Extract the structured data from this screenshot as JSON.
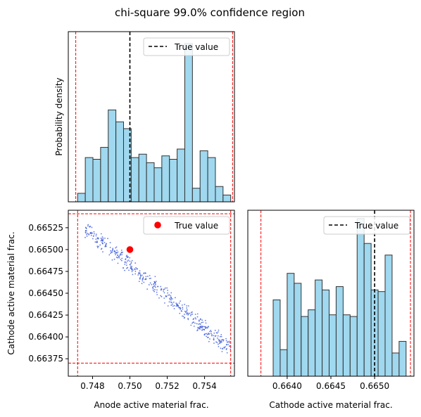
{
  "suptitle": "chi-square 99.0% confidence region",
  "colors": {
    "hist_fill": "#87ceeb",
    "hist_edge": "#333333",
    "scatter_point": "#2446d6",
    "true_point": "#ff0000",
    "bound_line": "#ff0000",
    "true_line": "#000000"
  },
  "chart_data": [
    {
      "panel": "top-left",
      "type": "bar",
      "subtype": "histogram",
      "title": "",
      "xlabel": "",
      "ylabel": "Probability density",
      "xlim": [
        0.7467,
        0.7556
      ],
      "ylim": [
        0,
        1.0
      ],
      "yticks_shown": false,
      "xticks_shown": false,
      "bin_edges": [
        0.7472,
        0.74761,
        0.74802,
        0.74843,
        0.74884,
        0.74925,
        0.74966,
        0.75007,
        0.75048,
        0.75089,
        0.7513,
        0.75171,
        0.75212,
        0.75253,
        0.75294,
        0.75335,
        0.75376,
        0.75417,
        0.75458,
        0.75499,
        0.7554
      ],
      "values": [
        0.05,
        0.26,
        0.25,
        0.32,
        0.54,
        0.47,
        0.43,
        0.26,
        0.28,
        0.23,
        0.2,
        0.27,
        0.25,
        0.31,
        0.93,
        0.08,
        0.3,
        0.26,
        0.09,
        0.04
      ],
      "true_value": 0.75,
      "bounds": [
        0.7471,
        0.7555
      ],
      "legend": {
        "entries": [
          "True value"
        ],
        "placement": "upper right"
      }
    },
    {
      "panel": "bottom-left",
      "type": "scatter",
      "title": "",
      "xlabel": "Anode active material frac.",
      "ylabel": "Cathode active material frac.",
      "xlim": [
        0.7467,
        0.7556
      ],
      "ylim": [
        0.66355,
        0.66545
      ],
      "xticks": [
        "0.748",
        "0.750",
        "0.752",
        "0.754"
      ],
      "xtick_values": [
        0.748,
        0.75,
        0.752,
        0.754
      ],
      "yticks": [
        "0.66375",
        "0.66400",
        "0.66425",
        "0.66450",
        "0.66475",
        "0.66500",
        "0.66525"
      ],
      "ytick_values": [
        0.66375,
        0.664,
        0.66425,
        0.6645,
        0.66475,
        0.665,
        0.66525
      ],
      "sample_region": {
        "x": [
          0.7476,
          0.7554
        ],
        "y_at_xmin": 0.66525,
        "y_at_xmax": 0.66385,
        "spread": 0.00012,
        "n_points": 450
      },
      "true_point": {
        "x": 0.75,
        "y": 0.665
      },
      "bounds_x": [
        0.7472,
        0.7554
      ],
      "bounds_y": [
        0.6637,
        0.66541
      ],
      "legend": {
        "entries": [
          "True value"
        ],
        "placement": "upper right"
      }
    },
    {
      "panel": "bottom-right",
      "type": "bar",
      "subtype": "histogram",
      "title": "",
      "xlabel": "Cathode active material frac.",
      "ylabel": "",
      "xlim": [
        0.66355,
        0.66545
      ],
      "ylim": [
        0,
        1.0
      ],
      "xticks": [
        "0.6640",
        "0.6645",
        "0.6650"
      ],
      "xtick_values": [
        0.664,
        0.6645,
        0.665
      ],
      "yticks_shown": false,
      "bin_edges": [
        0.66384,
        0.66392,
        0.664,
        0.66408,
        0.66416,
        0.66424,
        0.66432,
        0.6644,
        0.66448,
        0.66456,
        0.66464,
        0.66472,
        0.6648,
        0.66488,
        0.66496,
        0.66504,
        0.66512,
        0.6652,
        0.66528,
        0.66536
      ],
      "values": [
        0.46,
        0.16,
        0.62,
        0.56,
        0.36,
        0.4,
        0.58,
        0.52,
        0.37,
        0.54,
        0.37,
        0.36,
        0.95,
        0.8,
        0.52,
        0.51,
        0.73,
        0.14,
        0.21
      ],
      "true_value": 0.665,
      "bounds": [
        0.6637,
        0.66541
      ],
      "legend": {
        "entries": [
          "True value"
        ],
        "placement": "upper right"
      }
    }
  ]
}
